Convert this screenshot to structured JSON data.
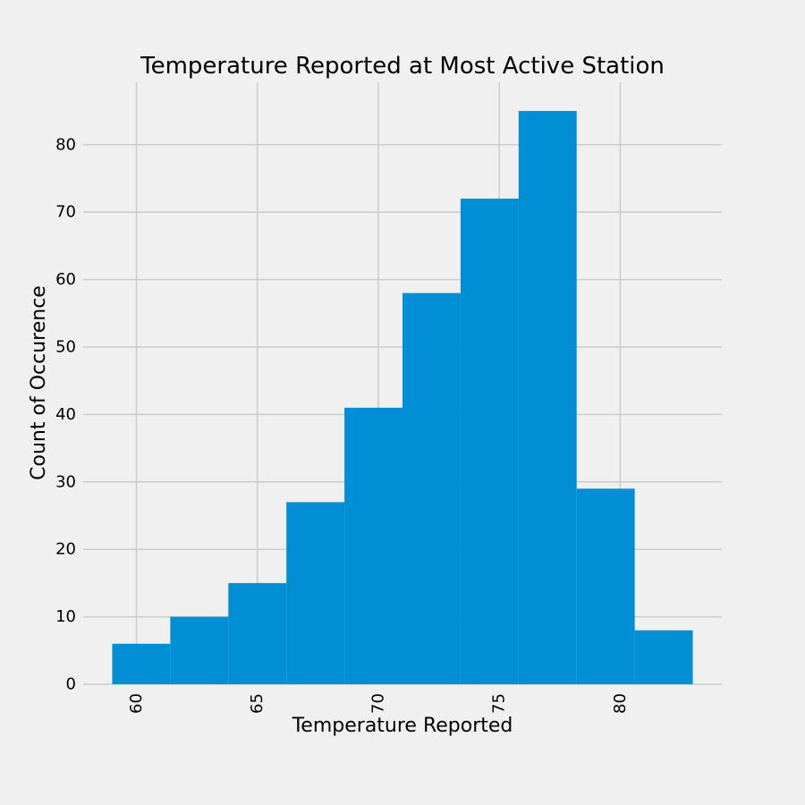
{
  "chart_data": {
    "type": "bar",
    "title": "Temperature Reported at Most Active Station",
    "xlabel": "Temperature Reported",
    "ylabel": "Count of Occurence",
    "xlim": [
      57.8,
      84.2
    ],
    "ylim": [
      0,
      89.25
    ],
    "xticks": [
      60,
      65,
      70,
      75,
      80
    ],
    "yticks": [
      0,
      10,
      20,
      30,
      40,
      50,
      60,
      70,
      80
    ],
    "bin_edges": [
      59.0,
      61.4,
      63.8,
      66.2,
      68.6,
      71.0,
      73.4,
      75.8,
      78.2,
      80.6,
      83.0
    ],
    "values": [
      6,
      10,
      15,
      27,
      41,
      58,
      72,
      85,
      29,
      8
    ],
    "bar_color": "#008fd5",
    "grid": true,
    "background": "#f0f0f0"
  }
}
